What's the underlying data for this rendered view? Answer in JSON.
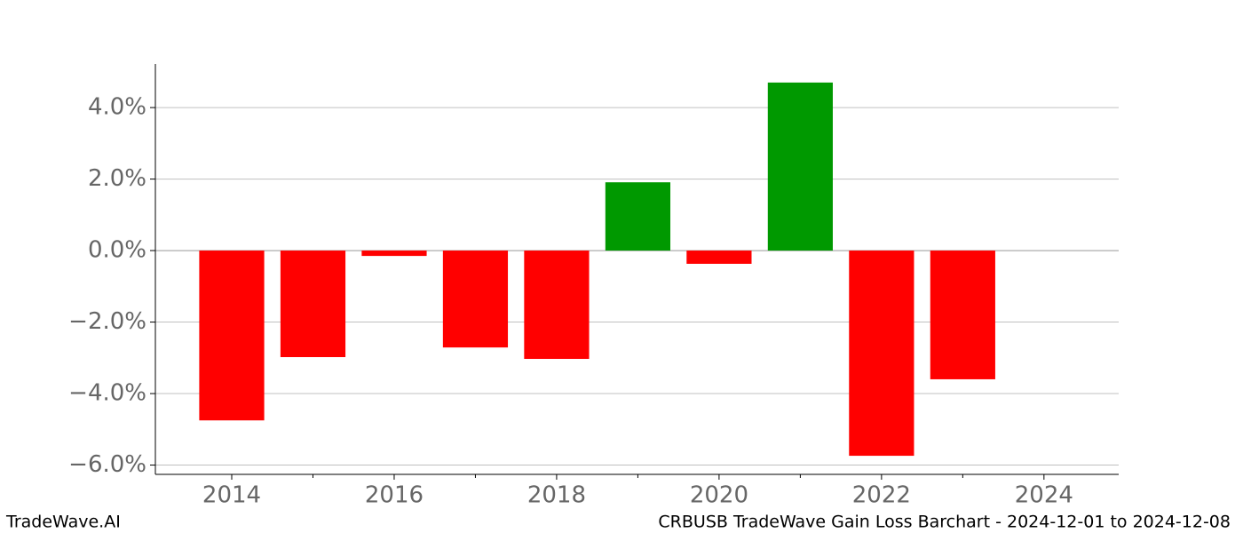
{
  "chart_data": {
    "type": "bar",
    "x": [
      2014,
      2015,
      2016,
      2017,
      2018,
      2019,
      2020,
      2021,
      2022,
      2023
    ],
    "values": [
      -4.75,
      -2.98,
      -0.15,
      -2.71,
      -3.03,
      1.91,
      -0.37,
      4.7,
      -5.74,
      -3.6
    ],
    "positive_color": "#009900",
    "negative_color": "#ff0000",
    "xlim": [
      2013.06,
      2024.92
    ],
    "xticks": [
      2014,
      2016,
      2018,
      2020,
      2022,
      2024
    ],
    "xminorticks": [
      2015,
      2017,
      2019,
      2021,
      2023
    ],
    "ylim": [
      -6.26,
      5.22
    ],
    "yticks": [
      {
        "value": -6,
        "label": "−6.0%"
      },
      {
        "value": -4,
        "label": "−4.0%"
      },
      {
        "value": -2,
        "label": "−2.0%"
      },
      {
        "value": 0,
        "label": "0.0%"
      },
      {
        "value": 2,
        "label": "2.0%"
      },
      {
        "value": 4,
        "label": "4.0%"
      }
    ],
    "grid": true,
    "watermark": "TradeWave.AI",
    "footer": "CRBUSB TradeWave Gain Loss Barchart - 2024-12-01 to 2024-12-08"
  }
}
